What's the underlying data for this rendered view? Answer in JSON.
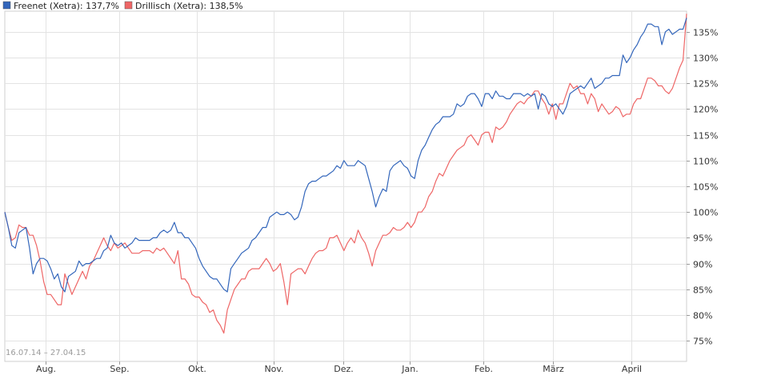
{
  "chart_data": {
    "type": "line",
    "date_range": "16.07.14 – 27.04.15",
    "x_tick_labels": [
      "Aug.",
      "Sep.",
      "Okt.",
      "Nov.",
      "Dez.",
      "Jan.",
      "Feb.",
      "März",
      "April"
    ],
    "y_tick_labels": [
      "75%",
      "80%",
      "85%",
      "90%",
      "95%",
      "100%",
      "105%",
      "110%",
      "115%",
      "120%",
      "125%",
      "130%",
      "135%"
    ],
    "ylim": [
      71,
      139
    ],
    "grid": true,
    "legend_position": "top-left",
    "series": [
      {
        "name": "Freenet (Xetra): 137,7%",
        "color": "#3366bb",
        "values": [
          100,
          97,
          93.5,
          93,
          96,
          96.5,
          97,
          93,
          88,
          90,
          91,
          91,
          90.5,
          89,
          87,
          88,
          85.5,
          84.5,
          87.5,
          88,
          88.5,
          90.5,
          89.5,
          90,
          90,
          90.5,
          91,
          91,
          92.5,
          93,
          95.5,
          94,
          93.5,
          94,
          93,
          93.5,
          94,
          95,
          94.5,
          94.5,
          94.5,
          94.5,
          95,
          95,
          96,
          96.5,
          96,
          96.5,
          98,
          96,
          96,
          95,
          95,
          94,
          93,
          91,
          89.5,
          88.5,
          87.5,
          87,
          87,
          86,
          85,
          84.5,
          89,
          90,
          91,
          92,
          92.5,
          93,
          94.5,
          95,
          96,
          97,
          97,
          99,
          99.5,
          100,
          99.5,
          99.5,
          100,
          99.5,
          98.5,
          99,
          101,
          104,
          105.5,
          106,
          106,
          106.5,
          107,
          107,
          107.5,
          108,
          109,
          108.5,
          110,
          109,
          109,
          109,
          110,
          109.5,
          109,
          106.5,
          104,
          101,
          103,
          104.5,
          104,
          108,
          109,
          109.5,
          110,
          109,
          108.5,
          107,
          106.5,
          110,
          112,
          113,
          114.5,
          116,
          117,
          117.5,
          118.5,
          118.5,
          118.5,
          119,
          121,
          120.5,
          121,
          122.5,
          123,
          123,
          122,
          120.5,
          123,
          123,
          122,
          123.5,
          122.5,
          122.5,
          122,
          122,
          123,
          123,
          123,
          122.5,
          123,
          122.5,
          123,
          120,
          123,
          122.5,
          121,
          120.5,
          121,
          120,
          119,
          120.5,
          123,
          123.5,
          124,
          124.5,
          124,
          125,
          126,
          124,
          124.5,
          125,
          126,
          126,
          126.5,
          126.5,
          126.5,
          130.5,
          129,
          130,
          131.5,
          132.5,
          134,
          135,
          136.5,
          136.5,
          136,
          136,
          132.5,
          135,
          135.5,
          134.5,
          135,
          135.5,
          135.5,
          137.7
        ]
      },
      {
        "name": "Drillisch (Xetra): 138,5%",
        "color": "#ee6666",
        "values": [
          100,
          97,
          94.5,
          95,
          97.5,
          97,
          97,
          95.5,
          95.5,
          93.5,
          90.5,
          86.5,
          84,
          84,
          83,
          82,
          82,
          88,
          86,
          84,
          85.5,
          87,
          88.5,
          87,
          89.5,
          90.5,
          92,
          93.5,
          95,
          93.5,
          92.5,
          94,
          93,
          93.5,
          94,
          93,
          92,
          92,
          92,
          92.5,
          92.5,
          92.5,
          92,
          93,
          92.5,
          93,
          92,
          91,
          90,
          92.5,
          87,
          87,
          86,
          84,
          83.5,
          83.5,
          82.5,
          82,
          80.5,
          81,
          79,
          78,
          76.5,
          81,
          83,
          85,
          86,
          87,
          87,
          88.5,
          89,
          89,
          89,
          90,
          91,
          90,
          88.5,
          89,
          90,
          86.5,
          82,
          88,
          88.5,
          89,
          89,
          88,
          89.5,
          91,
          92,
          92.5,
          92.5,
          93,
          95,
          95,
          95.5,
          94,
          92.5,
          94,
          95,
          94,
          96.5,
          95,
          94,
          92,
          89.5,
          92.5,
          94,
          95.5,
          95.5,
          96,
          97,
          96.5,
          96.5,
          97,
          98,
          97,
          98,
          100,
          100,
          101,
          103,
          104,
          106,
          107.5,
          107,
          108.5,
          110,
          111,
          112,
          112.5,
          113,
          114.5,
          115,
          114,
          113,
          115,
          115.5,
          115.5,
          113.5,
          116.5,
          116,
          116.5,
          117.5,
          119,
          120,
          121,
          121.5,
          121,
          122,
          122.5,
          123.5,
          123.5,
          122,
          121,
          119,
          121,
          118,
          121,
          121,
          123,
          125,
          124,
          124.5,
          123,
          123,
          121,
          123,
          122,
          119.5,
          121,
          120,
          119,
          119.5,
          120.5,
          120,
          118.5,
          119,
          119,
          121,
          122,
          122,
          124,
          126,
          126,
          125.5,
          124.5,
          124.5,
          123.5,
          123,
          124,
          126,
          128,
          129.5,
          138.5
        ]
      }
    ]
  }
}
